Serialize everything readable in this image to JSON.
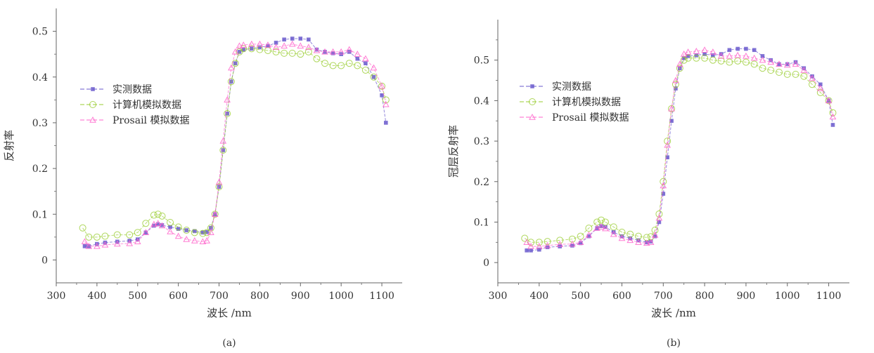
{
  "colors": {
    "measured": "#6a5acd",
    "computer_sim": "#9acd32",
    "prosail_sim": "#ff66cc",
    "axis": "#666666"
  },
  "chart_data": [
    {
      "type": "scatter",
      "caption": "(a)",
      "xlabel": "波长 /nm",
      "ylabel": "反射率",
      "xlim": [
        300,
        1150
      ],
      "ylim": [
        -0.05,
        0.55
      ],
      "xticks": [
        300,
        400,
        500,
        600,
        700,
        800,
        900,
        1000,
        1100
      ],
      "xtick_labels": [
        "300",
        "400",
        "500",
        "600",
        "700",
        "800",
        "900",
        "1000",
        "1100"
      ],
      "yticks": [
        0,
        0.1,
        0.2,
        0.3,
        0.4,
        0.5
      ],
      "ytick_labels": [
        "0",
        "0.1",
        "0.2",
        "0.3",
        "0.4",
        "0.5"
      ],
      "legend_position": "left",
      "series": [
        {
          "name": "实测数据",
          "marker": "square",
          "color_key": "measured",
          "x": [
            370,
            380,
            400,
            420,
            450,
            480,
            500,
            520,
            540,
            550,
            560,
            580,
            600,
            620,
            640,
            660,
            670,
            680,
            690,
            700,
            710,
            720,
            730,
            740,
            750,
            760,
            780,
            800,
            820,
            840,
            860,
            880,
            900,
            920,
            940,
            960,
            980,
            1000,
            1020,
            1040,
            1060,
            1080,
            1100,
            1110
          ],
          "y": [
            0.03,
            0.03,
            0.035,
            0.038,
            0.04,
            0.042,
            0.045,
            0.06,
            0.075,
            0.078,
            0.076,
            0.072,
            0.068,
            0.065,
            0.063,
            0.06,
            0.061,
            0.07,
            0.1,
            0.16,
            0.24,
            0.32,
            0.39,
            0.43,
            0.455,
            0.46,
            0.462,
            0.465,
            0.468,
            0.475,
            0.482,
            0.484,
            0.484,
            0.482,
            0.46,
            0.455,
            0.452,
            0.45,
            0.455,
            0.44,
            0.43,
            0.4,
            0.36,
            0.3
          ]
        },
        {
          "name": "计算机模拟数据",
          "marker": "circle",
          "color_key": "computer_sim",
          "x": [
            365,
            380,
            400,
            420,
            450,
            480,
            500,
            520,
            540,
            550,
            560,
            580,
            600,
            620,
            640,
            660,
            670,
            680,
            690,
            700,
            710,
            720,
            730,
            740,
            750,
            760,
            780,
            800,
            820,
            840,
            860,
            880,
            900,
            920,
            940,
            960,
            980,
            1000,
            1020,
            1040,
            1060,
            1080,
            1100,
            1110
          ],
          "y": [
            0.07,
            0.05,
            0.05,
            0.052,
            0.055,
            0.055,
            0.06,
            0.08,
            0.098,
            0.1,
            0.096,
            0.082,
            0.072,
            0.065,
            0.06,
            0.058,
            0.06,
            0.07,
            0.1,
            0.16,
            0.24,
            0.32,
            0.39,
            0.43,
            0.455,
            0.462,
            0.462,
            0.46,
            0.458,
            0.455,
            0.452,
            0.452,
            0.45,
            0.455,
            0.44,
            0.43,
            0.425,
            0.425,
            0.43,
            0.425,
            0.415,
            0.4,
            0.38,
            0.35
          ]
        },
        {
          "name": "Prosail 模拟数据",
          "marker": "triangle",
          "color_key": "prosail_sim",
          "x": [
            370,
            380,
            400,
            420,
            450,
            480,
            500,
            520,
            540,
            550,
            560,
            580,
            600,
            620,
            640,
            660,
            670,
            680,
            690,
            700,
            710,
            720,
            730,
            740,
            750,
            760,
            780,
            800,
            820,
            840,
            860,
            880,
            900,
            920,
            940,
            960,
            980,
            1000,
            1020,
            1040,
            1060,
            1080,
            1100,
            1110
          ],
          "y": [
            0.04,
            0.03,
            0.03,
            0.033,
            0.035,
            0.036,
            0.04,
            0.06,
            0.078,
            0.08,
            0.075,
            0.062,
            0.052,
            0.045,
            0.042,
            0.04,
            0.042,
            0.06,
            0.1,
            0.17,
            0.26,
            0.35,
            0.42,
            0.455,
            0.468,
            0.47,
            0.472,
            0.472,
            0.47,
            0.465,
            0.468,
            0.472,
            0.468,
            0.465,
            0.458,
            0.455,
            0.455,
            0.455,
            0.46,
            0.45,
            0.44,
            0.42,
            0.38,
            0.34
          ]
        }
      ]
    },
    {
      "type": "scatter",
      "caption": "(b)",
      "xlabel": "波长 /nm",
      "ylabel": "冠层反射率",
      "xlim": [
        300,
        1150
      ],
      "ylim": [
        -0.05,
        0.6
      ],
      "xticks": [
        300,
        400,
        500,
        600,
        700,
        800,
        900,
        1000,
        1100
      ],
      "xtick_labels": [
        "300",
        "400",
        "500",
        "600",
        "700",
        "800",
        "900",
        "1000",
        "1100"
      ],
      "yticks": [
        0,
        0.1,
        0.2,
        0.3,
        0.4,
        0.5
      ],
      "ytick_labels": [
        "0",
        "0.1",
        "0.2",
        "0.3",
        "0.4",
        "0.5"
      ],
      "legend_position": "top-left",
      "series": [
        {
          "name": "实测数据",
          "marker": "square",
          "color_key": "measured",
          "x": [
            370,
            380,
            400,
            420,
            450,
            480,
            500,
            520,
            540,
            550,
            560,
            580,
            600,
            620,
            640,
            660,
            670,
            680,
            690,
            700,
            710,
            720,
            730,
            740,
            750,
            760,
            780,
            800,
            820,
            840,
            860,
            880,
            900,
            920,
            940,
            960,
            980,
            1000,
            1020,
            1040,
            1060,
            1080,
            1100,
            1110
          ],
          "y": [
            0.03,
            0.03,
            0.032,
            0.038,
            0.04,
            0.042,
            0.048,
            0.065,
            0.085,
            0.09,
            0.088,
            0.075,
            0.065,
            0.06,
            0.055,
            0.05,
            0.052,
            0.065,
            0.1,
            0.17,
            0.26,
            0.35,
            0.43,
            0.48,
            0.505,
            0.51,
            0.512,
            0.515,
            0.512,
            0.515,
            0.525,
            0.528,
            0.528,
            0.525,
            0.51,
            0.5,
            0.49,
            0.49,
            0.495,
            0.48,
            0.46,
            0.44,
            0.4,
            0.34
          ]
        },
        {
          "name": "计算机模拟数据",
          "marker": "circle",
          "color_key": "computer_sim",
          "x": [
            365,
            380,
            400,
            420,
            450,
            480,
            500,
            520,
            540,
            550,
            560,
            580,
            600,
            620,
            640,
            660,
            670,
            680,
            690,
            700,
            710,
            720,
            730,
            740,
            750,
            760,
            780,
            800,
            820,
            840,
            860,
            880,
            900,
            920,
            940,
            960,
            980,
            1000,
            1020,
            1040,
            1060,
            1080,
            1100,
            1110
          ],
          "y": [
            0.06,
            0.05,
            0.05,
            0.052,
            0.055,
            0.058,
            0.065,
            0.085,
            0.1,
            0.105,
            0.1,
            0.088,
            0.075,
            0.07,
            0.065,
            0.062,
            0.064,
            0.08,
            0.12,
            0.2,
            0.3,
            0.38,
            0.44,
            0.48,
            0.5,
            0.505,
            0.505,
            0.505,
            0.5,
            0.498,
            0.495,
            0.498,
            0.495,
            0.49,
            0.48,
            0.475,
            0.47,
            0.465,
            0.465,
            0.46,
            0.44,
            0.42,
            0.4,
            0.37
          ]
        },
        {
          "name": "Prosail 模拟数据",
          "marker": "triangle",
          "color_key": "prosail_sim",
          "x": [
            370,
            380,
            400,
            420,
            450,
            480,
            500,
            520,
            540,
            550,
            560,
            580,
            600,
            620,
            640,
            660,
            670,
            680,
            690,
            700,
            710,
            720,
            730,
            740,
            750,
            760,
            780,
            800,
            820,
            840,
            860,
            880,
            900,
            920,
            940,
            960,
            980,
            1000,
            1020,
            1040,
            1060,
            1080,
            1100,
            1110
          ],
          "y": [
            0.05,
            0.04,
            0.04,
            0.042,
            0.045,
            0.046,
            0.05,
            0.068,
            0.085,
            0.088,
            0.084,
            0.07,
            0.06,
            0.055,
            0.05,
            0.048,
            0.05,
            0.068,
            0.11,
            0.19,
            0.29,
            0.38,
            0.45,
            0.49,
            0.515,
            0.52,
            0.522,
            0.525,
            0.52,
            0.51,
            0.51,
            0.512,
            0.51,
            0.505,
            0.5,
            0.495,
            0.49,
            0.488,
            0.49,
            0.475,
            0.455,
            0.43,
            0.4,
            0.36
          ]
        }
      ]
    }
  ]
}
